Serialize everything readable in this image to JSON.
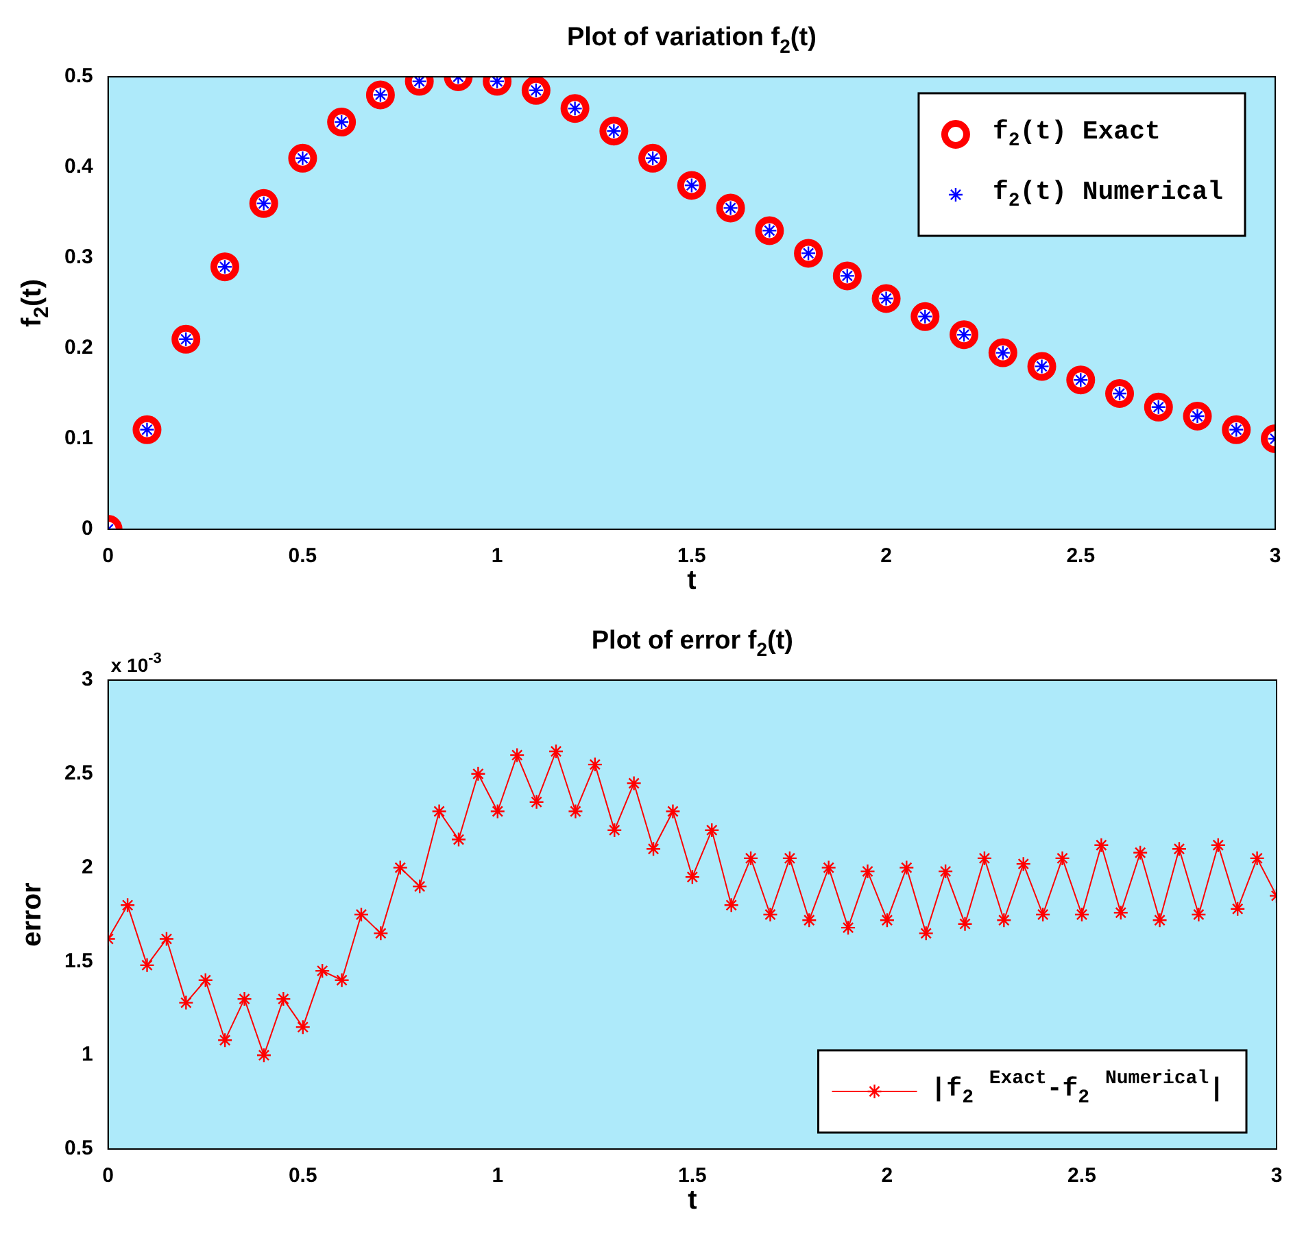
{
  "chart_data": [
    {
      "type": "scatter",
      "title": "Plot of variation f$_{2}$(t)",
      "xlabel": "t",
      "ylabel": "f$_{2}$(t)",
      "x": [
        0,
        0.1,
        0.2,
        0.3,
        0.4,
        0.5,
        0.6,
        0.7,
        0.8,
        0.9,
        1.0,
        1.1,
        1.2,
        1.3,
        1.4,
        1.5,
        1.6,
        1.7,
        1.8,
        1.9,
        2.0,
        2.1,
        2.2,
        2.3,
        2.4,
        2.5,
        2.6,
        2.7,
        2.8,
        2.9,
        3.0
      ],
      "series": [
        {
          "name": "f$_{2}$(t) Exact",
          "color": "#ff0000",
          "marker": "circle",
          "values": [
            0,
            0.11,
            0.21,
            0.29,
            0.36,
            0.41,
            0.45,
            0.48,
            0.495,
            0.5,
            0.495,
            0.485,
            0.465,
            0.44,
            0.41,
            0.38,
            0.355,
            0.33,
            0.305,
            0.28,
            0.255,
            0.235,
            0.215,
            0.195,
            0.18,
            0.165,
            0.15,
            0.135,
            0.125,
            0.11,
            0.1
          ]
        },
        {
          "name": "f$_{2}$(t) Numerical",
          "color": "#0000ff",
          "marker": "cross",
          "values": [
            0,
            0.11,
            0.21,
            0.29,
            0.36,
            0.41,
            0.45,
            0.48,
            0.495,
            0.5,
            0.495,
            0.485,
            0.465,
            0.44,
            0.41,
            0.38,
            0.355,
            0.33,
            0.305,
            0.28,
            0.255,
            0.235,
            0.215,
            0.195,
            0.18,
            0.165,
            0.15,
            0.135,
            0.125,
            0.11,
            0.1
          ]
        }
      ],
      "xlim": [
        0,
        3
      ],
      "xticks": [
        0,
        0.5,
        1,
        1.5,
        2,
        2.5,
        3
      ],
      "ylim": [
        0,
        0.5
      ],
      "yticks": [
        0,
        0.1,
        0.2,
        0.3,
        0.4,
        0.5
      ],
      "grid": false,
      "legend": "top right"
    },
    {
      "type": "line",
      "title": "Plot of error f$_{2}$(t)",
      "xlabel": "t",
      "ylabel": "error",
      "annotations": [
        "x 10$^{-3}$"
      ],
      "x": [
        0,
        0.05,
        0.1,
        0.15,
        0.2,
        0.25,
        0.3,
        0.35,
        0.4,
        0.45,
        0.5,
        0.55,
        0.6,
        0.65,
        0.7,
        0.75,
        0.8,
        0.85,
        0.9,
        0.95,
        1.0,
        1.05,
        1.1,
        1.15,
        1.2,
        1.25,
        1.3,
        1.35,
        1.4,
        1.45,
        1.5,
        1.55,
        1.6,
        1.65,
        1.7,
        1.75,
        1.8,
        1.85,
        1.9,
        1.95,
        2.0,
        2.05,
        2.1,
        2.15,
        2.2,
        2.25,
        2.3,
        2.35,
        2.4,
        2.45,
        2.5,
        2.55,
        2.6,
        2.65,
        2.7,
        2.75,
        2.8,
        2.85,
        2.9,
        2.95,
        3.0
      ],
      "series": [
        {
          "name": "|f$_{2}$ $^{Exact}$-f$_{2}$ $^{Numerical}$|",
          "color": "#ff0000",
          "values": [
            1.62,
            1.8,
            1.48,
            1.62,
            1.28,
            1.4,
            1.08,
            1.3,
            1.0,
            1.3,
            1.15,
            1.45,
            1.4,
            1.75,
            1.65,
            2.0,
            1.9,
            2.3,
            2.15,
            2.5,
            2.3,
            2.6,
            2.35,
            2.62,
            2.3,
            2.55,
            2.2,
            2.45,
            2.1,
            2.3,
            1.95,
            2.2,
            1.8,
            2.05,
            1.75,
            2.05,
            1.72,
            2.0,
            1.68,
            1.98,
            1.72,
            2.0,
            1.65,
            1.98,
            1.7,
            2.05,
            1.72,
            2.02,
            1.75,
            2.05,
            1.75,
            2.12,
            1.76,
            2.08,
            1.72,
            2.1,
            1.75,
            2.12,
            1.78,
            2.05,
            1.85
          ]
        }
      ],
      "marker": "cross",
      "line_style": "solid",
      "xlim": [
        0,
        3
      ],
      "xticks": [
        0,
        0.5,
        1,
        1.5,
        2,
        2.5,
        3
      ],
      "ylim": [
        0.5,
        3
      ],
      "yticks": [
        0.5,
        1,
        1.5,
        2,
        2.5,
        3
      ],
      "grid": false,
      "legend": "bottom right"
    }
  ]
}
